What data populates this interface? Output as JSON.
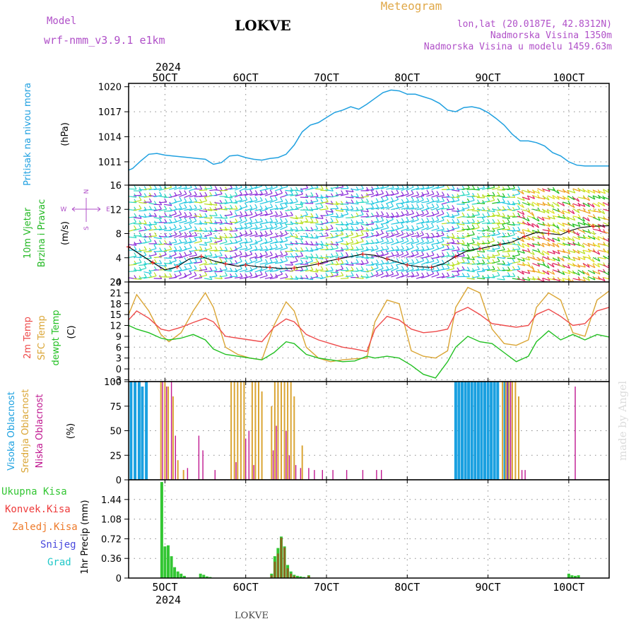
{
  "header": {
    "model_label": "Model",
    "model_name": "wrf-nmm_v3.9.1 e1km",
    "station": "LOKVE",
    "product": "Meteogram",
    "location_line": "lon,lat (20.0187E, 42.8312N)",
    "altitude_line": "Nadmorska Visina 1350m",
    "model_altitude_line": "Nadmorska Visina u modelu 1459.63m",
    "footer_station": "LOKVE",
    "credit": "made by Angel"
  },
  "colors": {
    "pressure": "#1fa0e0",
    "temp2m": "#ee4a4a",
    "sfc_temp": "#daa534",
    "dewpoint": "#22c022",
    "cloud_high": "#1aa0e0",
    "cloud_mid": "#daa534",
    "cloud_low": "#c01890",
    "precip_total": "#33c633",
    "precip_conv": "#ee3a3a",
    "precip_frozen": "#ee7a2a",
    "snow": "#4848dd",
    "hail": "#20c8c8"
  },
  "time_axis": {
    "year": "2024",
    "tick_labels": [
      "5OCT",
      "6OCT",
      "7OCT",
      "8OCT",
      "9OCT",
      "10OCT"
    ],
    "tick_days": [
      5,
      6,
      7,
      8,
      9,
      10
    ],
    "range_days": [
      4.55,
      10.5
    ]
  },
  "chart_data": [
    {
      "type": "line",
      "id": "pressure",
      "ylabel_lines": [
        "Pritisak na nivou mora",
        "(hPa)"
      ],
      "ylim": [
        1008.2,
        1020.4
      ],
      "yticks": [
        1011,
        1014,
        1017,
        1020
      ],
      "grid": true,
      "series": [
        {
          "x": [
            4.55,
            4.6,
            4.7,
            4.8,
            4.9,
            5.0,
            5.1,
            5.2,
            5.3,
            5.4,
            5.5,
            5.6,
            5.7,
            5.8,
            5.9,
            6.0,
            6.1,
            6.2,
            6.3,
            6.4,
            6.5,
            6.6,
            6.7,
            6.8,
            6.9,
            7.0,
            7.1,
            7.2,
            7.3,
            7.4,
            7.5,
            7.6,
            7.7,
            7.8,
            7.9,
            8.0,
            8.1,
            8.2,
            8.3,
            8.4,
            8.5,
            8.6,
            8.7,
            8.8,
            8.9,
            9.0,
            9.1,
            9.2,
            9.3,
            9.4,
            9.5,
            9.6,
            9.7,
            9.8,
            9.9,
            10.0,
            10.1,
            10.2,
            10.3,
            10.4,
            10.5
          ],
          "y": [
            1010.0,
            1010.2,
            1011.1,
            1011.9,
            1012.0,
            1011.8,
            1011.7,
            1011.6,
            1011.5,
            1011.4,
            1011.3,
            1010.7,
            1010.9,
            1011.7,
            1011.8,
            1011.5,
            1011.3,
            1011.2,
            1011.4,
            1011.5,
            1011.9,
            1013.0,
            1014.6,
            1015.4,
            1015.7,
            1016.3,
            1016.9,
            1017.2,
            1017.6,
            1017.3,
            1017.9,
            1018.6,
            1019.3,
            1019.6,
            1019.5,
            1019.1,
            1019.1,
            1018.8,
            1018.5,
            1018.0,
            1017.2,
            1017.0,
            1017.5,
            1017.6,
            1017.4,
            1016.9,
            1016.2,
            1015.4,
            1014.3,
            1013.5,
            1013.5,
            1013.3,
            1012.9,
            1012.1,
            1011.7,
            1011.0,
            1010.6,
            1010.5,
            1010.5,
            1010.5,
            1010.5
          ]
        }
      ]
    },
    {
      "type": "line",
      "id": "wind",
      "ylabel_lines": [
        "10m Vjetar",
        "Brzina i Pravac",
        "(m/s)"
      ],
      "compass": {
        "n": "N",
        "s": "S",
        "e": "E",
        "w": "W"
      },
      "ylim": [
        0,
        16
      ],
      "yticks": [
        0,
        4,
        8,
        12,
        16
      ],
      "grid": true,
      "series": [
        {
          "name": "speed",
          "x": [
            4.55,
            4.7,
            4.85,
            5.0,
            5.15,
            5.3,
            5.45,
            5.6,
            5.75,
            5.9,
            6.0,
            6.15,
            6.3,
            6.45,
            6.6,
            6.75,
            6.9,
            7.0,
            7.15,
            7.3,
            7.45,
            7.6,
            7.75,
            7.9,
            8.0,
            8.15,
            8.3,
            8.45,
            8.6,
            8.75,
            8.9,
            9.0,
            9.15,
            9.3,
            9.45,
            9.6,
            9.75,
            9.9,
            10.0,
            10.15,
            10.3,
            10.5
          ],
          "y": [
            5.8,
            4.5,
            3.2,
            2.0,
            2.5,
            3.8,
            4.2,
            3.5,
            3.0,
            2.6,
            2.8,
            2.5,
            2.4,
            2.2,
            2.3,
            2.6,
            3.0,
            3.4,
            3.8,
            4.2,
            4.6,
            4.4,
            3.8,
            3.2,
            2.8,
            2.5,
            2.4,
            3.0,
            4.2,
            5.2,
            5.5,
            5.8,
            6.2,
            6.6,
            7.5,
            8.2,
            8.0,
            7.8,
            8.4,
            9.0,
            9.2,
            9.3
          ]
        }
      ]
    },
    {
      "type": "line",
      "id": "temperature",
      "ylabel_lines": [
        "2m Temp",
        "SFC Temp",
        "dewpt Temp",
        "(C)"
      ],
      "ylim": [
        -3.5,
        24
      ],
      "yticks": [
        -3,
        0,
        3,
        6,
        9,
        12,
        15,
        18,
        21,
        24
      ],
      "grid": true,
      "series": [
        {
          "name": "2m Temp",
          "x": [
            4.55,
            4.65,
            4.8,
            4.95,
            5.05,
            5.2,
            5.35,
            5.5,
            5.6,
            5.75,
            5.9,
            6.05,
            6.2,
            6.35,
            6.5,
            6.6,
            6.75,
            6.9,
            7.05,
            7.2,
            7.35,
            7.5,
            7.6,
            7.75,
            7.9,
            8.05,
            8.2,
            8.35,
            8.5,
            8.6,
            8.75,
            8.9,
            9.05,
            9.2,
            9.35,
            9.5,
            9.6,
            9.75,
            9.9,
            10.05,
            10.2,
            10.35,
            10.5
          ],
          "y": [
            13.5,
            16.0,
            14.0,
            11.0,
            10.5,
            11.5,
            12.8,
            14.0,
            13.0,
            9.0,
            8.5,
            8.0,
            7.5,
            11.5,
            13.8,
            13.0,
            9.5,
            8.0,
            7.0,
            6.0,
            5.5,
            4.8,
            11.0,
            14.5,
            13.5,
            11.0,
            10.0,
            10.3,
            11.0,
            15.5,
            17.0,
            15.0,
            12.5,
            12.0,
            11.5,
            12.0,
            15.0,
            16.5,
            14.5,
            12.0,
            12.5,
            16.0,
            17.0
          ]
        },
        {
          "name": "SFC Temp",
          "x": [
            4.55,
            4.65,
            4.8,
            4.95,
            5.05,
            5.2,
            5.35,
            5.5,
            5.6,
            5.75,
            5.9,
            6.05,
            6.2,
            6.35,
            6.5,
            6.6,
            6.75,
            6.9,
            7.05,
            7.2,
            7.35,
            7.5,
            7.6,
            7.75,
            7.9,
            8.05,
            8.2,
            8.35,
            8.5,
            8.6,
            8.75,
            8.9,
            9.05,
            9.2,
            9.35,
            9.5,
            9.6,
            9.75,
            9.9,
            10.05,
            10.2,
            10.35,
            10.5
          ],
          "y": [
            15.0,
            20.5,
            16.0,
            9.5,
            7.5,
            10.0,
            16.0,
            21.0,
            17.0,
            6.0,
            4.0,
            3.0,
            2.5,
            12.0,
            18.5,
            16.0,
            6.0,
            3.0,
            2.0,
            2.5,
            2.8,
            3.0,
            13.0,
            19.0,
            18.0,
            5.0,
            3.5,
            3.0,
            5.0,
            17.0,
            22.5,
            21.0,
            11.0,
            7.0,
            6.5,
            8.0,
            17.0,
            21.0,
            19.0,
            10.0,
            9.0,
            19.0,
            21.5
          ]
        },
        {
          "name": "dewpt Temp",
          "x": [
            4.55,
            4.65,
            4.8,
            4.95,
            5.05,
            5.2,
            5.35,
            5.5,
            5.6,
            5.75,
            5.9,
            6.05,
            6.2,
            6.35,
            6.5,
            6.6,
            6.75,
            6.9,
            7.05,
            7.2,
            7.35,
            7.5,
            7.6,
            7.75,
            7.9,
            8.05,
            8.2,
            8.35,
            8.5,
            8.6,
            8.75,
            8.9,
            9.05,
            9.2,
            9.35,
            9.5,
            9.6,
            9.75,
            9.9,
            10.05,
            10.2,
            10.35,
            10.5
          ],
          "y": [
            12.0,
            11.0,
            10.0,
            8.5,
            8.0,
            8.5,
            9.5,
            8.0,
            5.5,
            4.0,
            3.5,
            3.0,
            2.5,
            4.5,
            7.5,
            7.0,
            4.0,
            3.0,
            2.5,
            2.0,
            2.2,
            3.5,
            3.0,
            3.5,
            3.0,
            1.0,
            -1.5,
            -2.5,
            2.0,
            6.0,
            9.0,
            7.5,
            7.0,
            4.5,
            2.0,
            3.5,
            7.5,
            10.5,
            8.0,
            9.5,
            8.0,
            9.5,
            8.8
          ]
        }
      ]
    },
    {
      "type": "bar",
      "id": "clouds",
      "ylabel_lines": [
        "Visoka Oblacnost",
        "Srednja Oblacnost",
        "Niska Oblacnost",
        "(%)"
      ],
      "ylim": [
        0,
        100
      ],
      "yticks": [
        0,
        25,
        50,
        75,
        100
      ],
      "grid": true,
      "series": [
        {
          "name": "Visoka Oblacnost",
          "x": [
            4.58,
            4.63,
            4.68,
            4.72,
            4.77,
            8.6,
            8.64,
            8.68,
            8.72,
            8.76,
            8.8,
            8.84,
            8.88,
            8.92,
            8.96,
            9.0,
            9.04,
            9.08,
            9.12,
            9.21,
            9.25
          ],
          "y": [
            100,
            100,
            100,
            95,
            100,
            100,
            100,
            100,
            100,
            100,
            100,
            100,
            100,
            100,
            100,
            100,
            100,
            100,
            100,
            100,
            100
          ]
        },
        {
          "name": "Srednja Oblacnost",
          "x": [
            4.95,
            5.0,
            5.04,
            5.1,
            5.16,
            5.23,
            5.82,
            5.86,
            5.9,
            5.94,
            5.98,
            6.08,
            6.12,
            6.16,
            6.2,
            6.32,
            6.36,
            6.4,
            6.44,
            6.48,
            6.52,
            6.56,
            6.6,
            6.7,
            9.18,
            9.22,
            9.26,
            9.3,
            9.34,
            9.38
          ],
          "y": [
            100,
            100,
            95,
            85,
            20,
            10,
            100,
            100,
            100,
            100,
            100,
            100,
            100,
            100,
            90,
            75,
            100,
            100,
            100,
            100,
            100,
            100,
            85,
            35,
            100,
            100,
            100,
            100,
            100,
            85
          ]
        },
        {
          "name": "Niska Oblacnost",
          "x": [
            4.97,
            5.02,
            5.08,
            5.13,
            5.28,
            5.42,
            5.47,
            5.62,
            5.88,
            6.0,
            6.04,
            6.1,
            6.34,
            6.38,
            6.5,
            6.54,
            6.62,
            6.68,
            6.78,
            6.85,
            6.95,
            7.08,
            7.25,
            7.45,
            7.62,
            7.68,
            9.24,
            9.28,
            9.42,
            9.46,
            10.08
          ],
          "y": [
            100,
            95,
            100,
            45,
            12,
            45,
            30,
            10,
            18,
            42,
            50,
            15,
            30,
            55,
            50,
            25,
            15,
            12,
            12,
            10,
            10,
            10,
            10,
            10,
            10,
            10,
            100,
            100,
            10,
            10,
            95
          ]
        }
      ]
    },
    {
      "type": "bar",
      "id": "precip",
      "ylabel_lines": [
        "1hr Precip (mm)"
      ],
      "legend": [
        "Ukupna Kisa",
        "Konvek.Kisa",
        "Zaledj.Kisa",
        "Snijeg",
        "Grad"
      ],
      "ylim": [
        0,
        1.8
      ],
      "yticks": [
        0,
        0.36,
        0.72,
        1.08,
        1.44
      ],
      "ytick_labels": [
        "0",
        "0.36",
        "0.72",
        "1.08",
        "1.44"
      ],
      "grid": true,
      "series": [
        {
          "name": "Ukupna Kisa",
          "x": [
            4.96,
            5.0,
            5.04,
            5.08,
            5.12,
            5.16,
            5.2,
            5.24,
            5.44,
            5.48,
            5.52,
            5.56,
            6.32,
            6.36,
            6.4,
            6.44,
            6.48,
            6.52,
            6.56,
            6.6,
            6.64,
            6.68,
            6.72,
            6.78,
            10.0,
            10.04,
            10.08,
            10.12
          ],
          "y": [
            1.76,
            0.58,
            0.6,
            0.4,
            0.2,
            0.12,
            0.08,
            0.04,
            0.08,
            0.06,
            0.03,
            0.02,
            0.08,
            0.4,
            0.55,
            0.76,
            0.58,
            0.24,
            0.12,
            0.06,
            0.04,
            0.03,
            0.02,
            0.05,
            0.08,
            0.05,
            0.04,
            0.05
          ]
        },
        {
          "name": "Konvek.Kisa",
          "x": [
            6.32,
            6.36,
            6.4,
            6.44,
            6.48,
            6.52,
            6.56,
            6.6,
            6.78
          ],
          "y": [
            0.05,
            0.3,
            0.45,
            0.74,
            0.56,
            0.18,
            0.08,
            0.04,
            0.04
          ]
        }
      ]
    }
  ]
}
